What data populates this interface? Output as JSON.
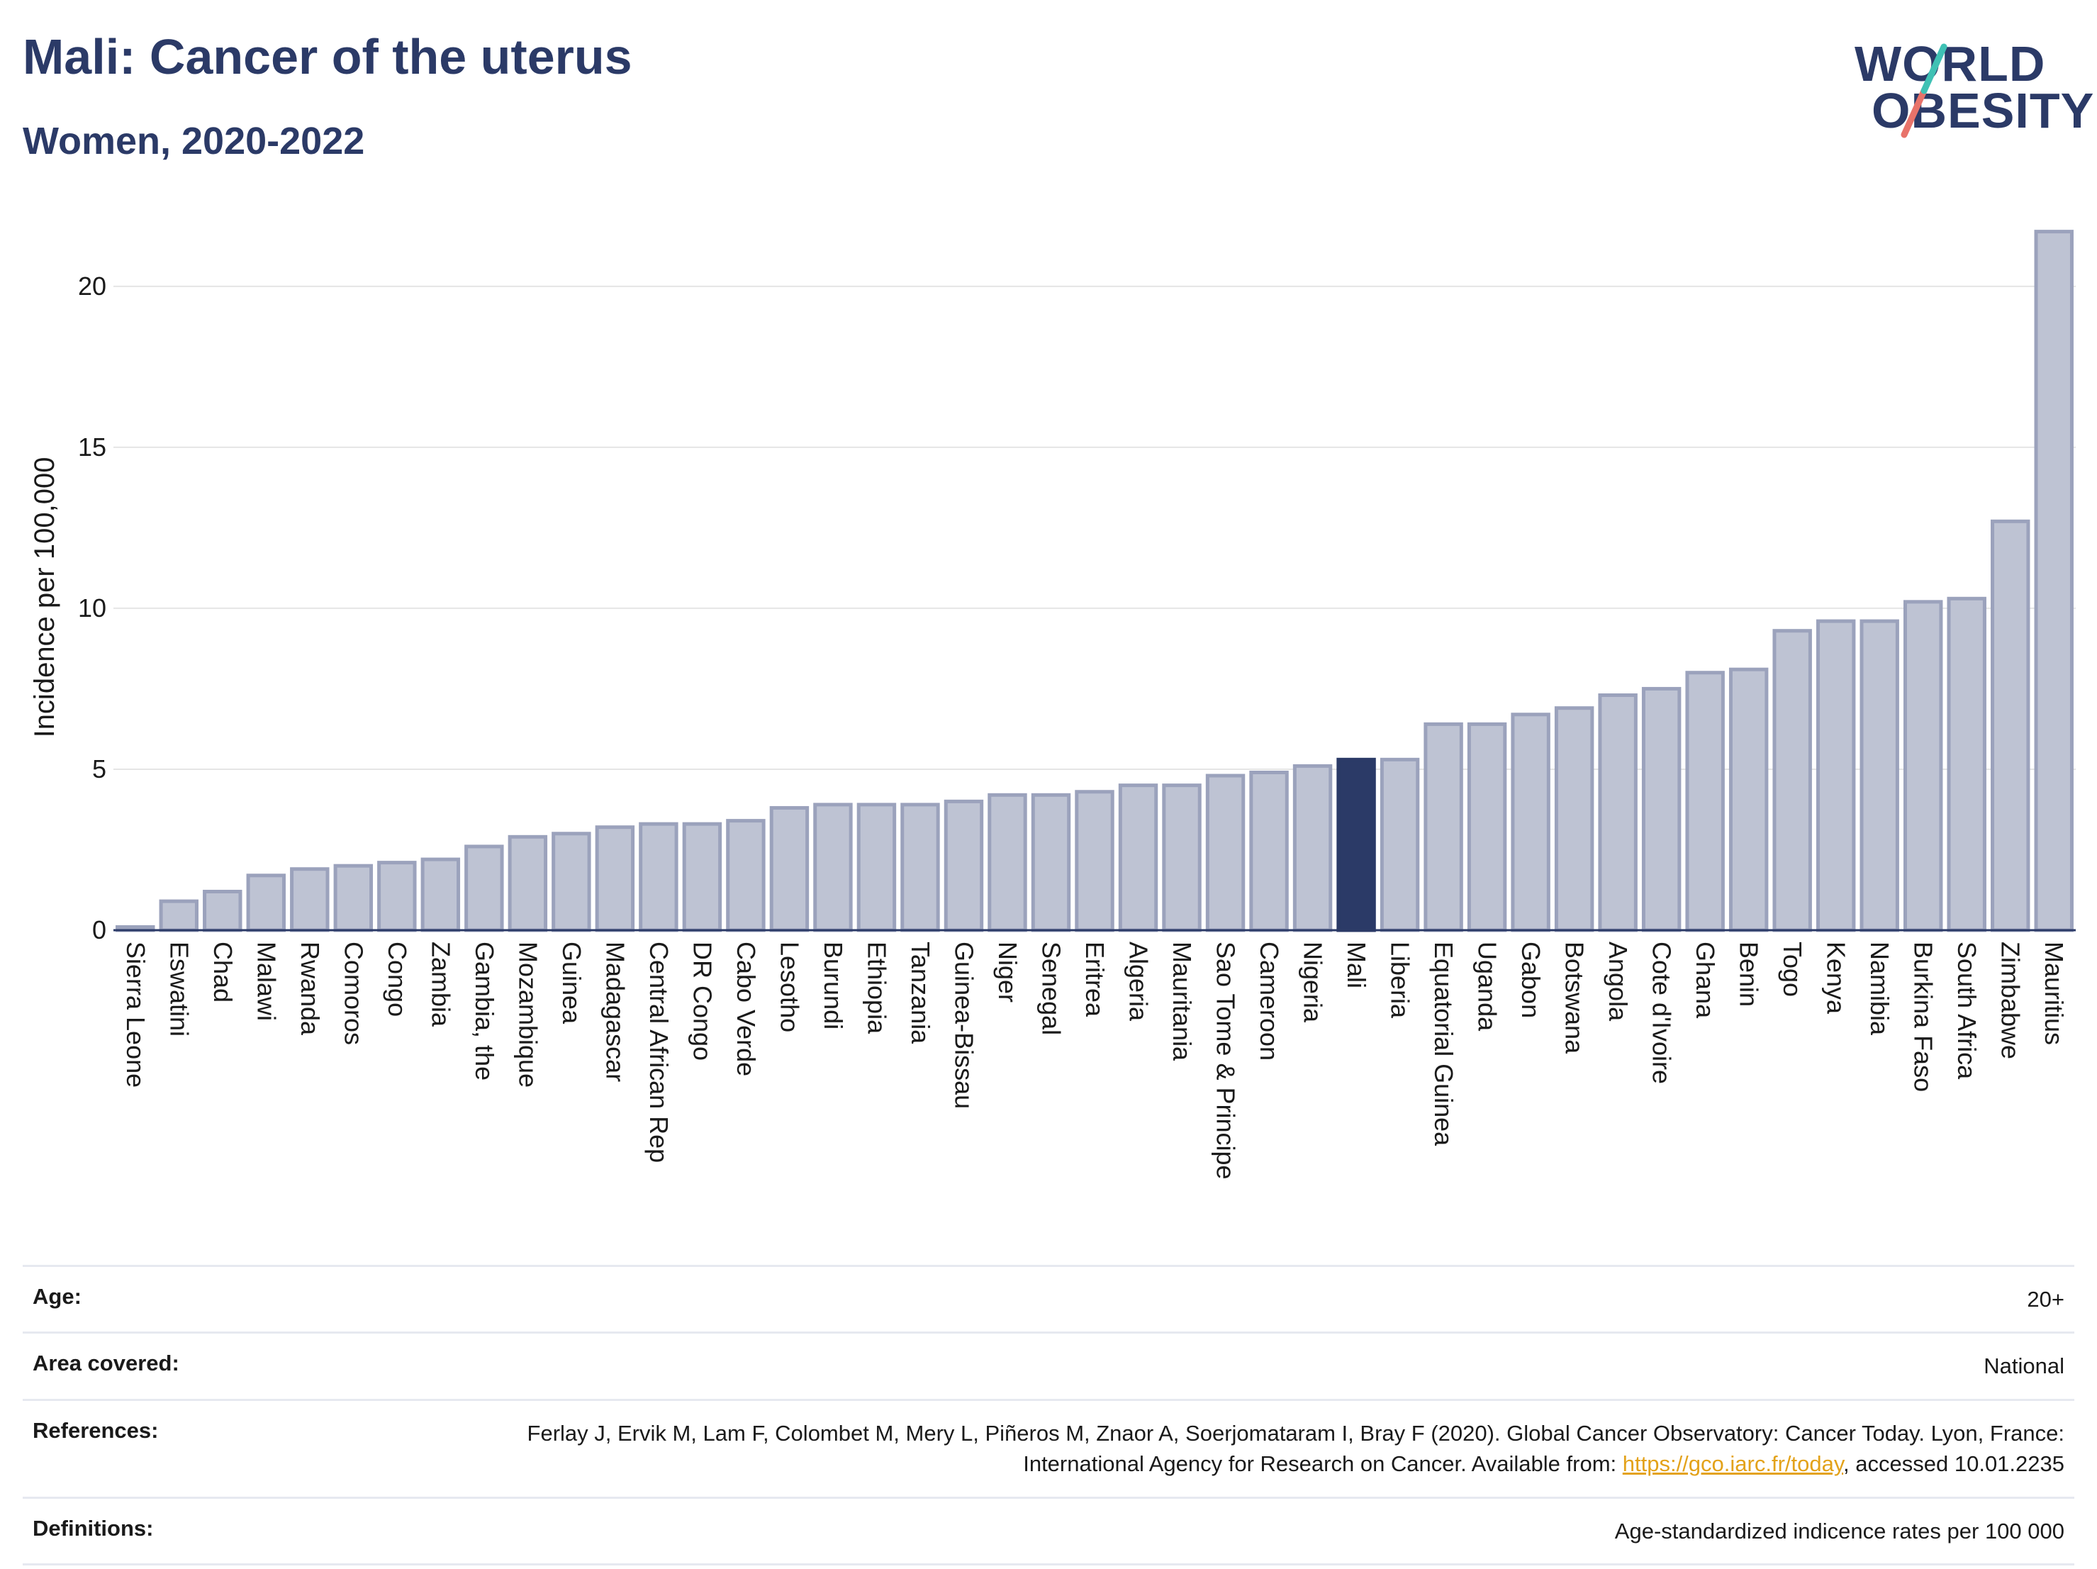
{
  "header": {
    "title": "Mali: Cancer of the uterus",
    "subtitle": "Women, 2020-2022"
  },
  "logo": {
    "line1": "WORLD",
    "line2": "OBESITY"
  },
  "colors": {
    "bar": "#bec3d3",
    "bar_stroke": "#9ba2bc",
    "highlight": "#2b3a67",
    "grid": "#e5e5e5"
  },
  "chart_data": {
    "type": "bar",
    "title": "Mali: Cancer of the uterus",
    "subtitle": "Women, 2020-2022",
    "ylabel": "Incidence per 100,000",
    "ylim": [
      0,
      22
    ],
    "yticks": [
      0,
      5,
      10,
      15,
      20
    ],
    "grid": true,
    "highlight": "Mali",
    "categories": [
      "Sierra Leone",
      "Eswatini",
      "Chad",
      "Malawi",
      "Rwanda",
      "Comoros",
      "Congo",
      "Zambia",
      "Gambia, the",
      "Mozambique",
      "Guinea",
      "Madagascar",
      "Central African Rep",
      "DR Congo",
      "Cabo Verde",
      "Lesotho",
      "Burundi",
      "Ethiopia",
      "Tanzania",
      "Guinea-Bissau",
      "Niger",
      "Senegal",
      "Eritrea",
      "Algeria",
      "Mauritania",
      "Sao Tome & Principe",
      "Cameroon",
      "Nigeria",
      "Mali",
      "Liberia",
      "Equatorial Guinea",
      "Uganda",
      "Gabon",
      "Botswana",
      "Angola",
      "Cote d'Ivoire",
      "Ghana",
      "Benin",
      "Togo",
      "Kenya",
      "Namibia",
      "Burkina Faso",
      "South Africa",
      "Zimbabwe",
      "Mauritius"
    ],
    "values": [
      0.1,
      0.9,
      1.2,
      1.7,
      1.9,
      2.0,
      2.1,
      2.2,
      2.6,
      2.9,
      3.0,
      3.2,
      3.3,
      3.3,
      3.4,
      3.8,
      3.9,
      3.9,
      3.9,
      4.0,
      4.2,
      4.2,
      4.3,
      4.5,
      4.5,
      4.8,
      4.9,
      5.1,
      5.3,
      5.3,
      6.4,
      6.4,
      6.7,
      6.9,
      7.3,
      7.5,
      8.0,
      8.1,
      9.3,
      9.6,
      9.6,
      10.2,
      10.3,
      12.7,
      21.7
    ]
  },
  "meta": {
    "age_label": "Age:",
    "age_value": "20+",
    "area_label": "Area covered:",
    "area_value": "National",
    "ref_label": "References:",
    "ref_text_1": "Ferlay J, Ervik M, Lam F, Colombet M, Mery L, Piñeros M, Znaor A, Soerjomataram I, Bray F (2020). Global Cancer Observatory: Cancer Today. Lyon, France: International Agency for Research on Cancer. Available from: ",
    "ref_link": "https://gco.iarc.fr/today",
    "ref_text_2": ", accessed 10.01.2235",
    "def_label": "Definitions:",
    "def_value": "Age-standardized indicence rates per 100 000"
  }
}
